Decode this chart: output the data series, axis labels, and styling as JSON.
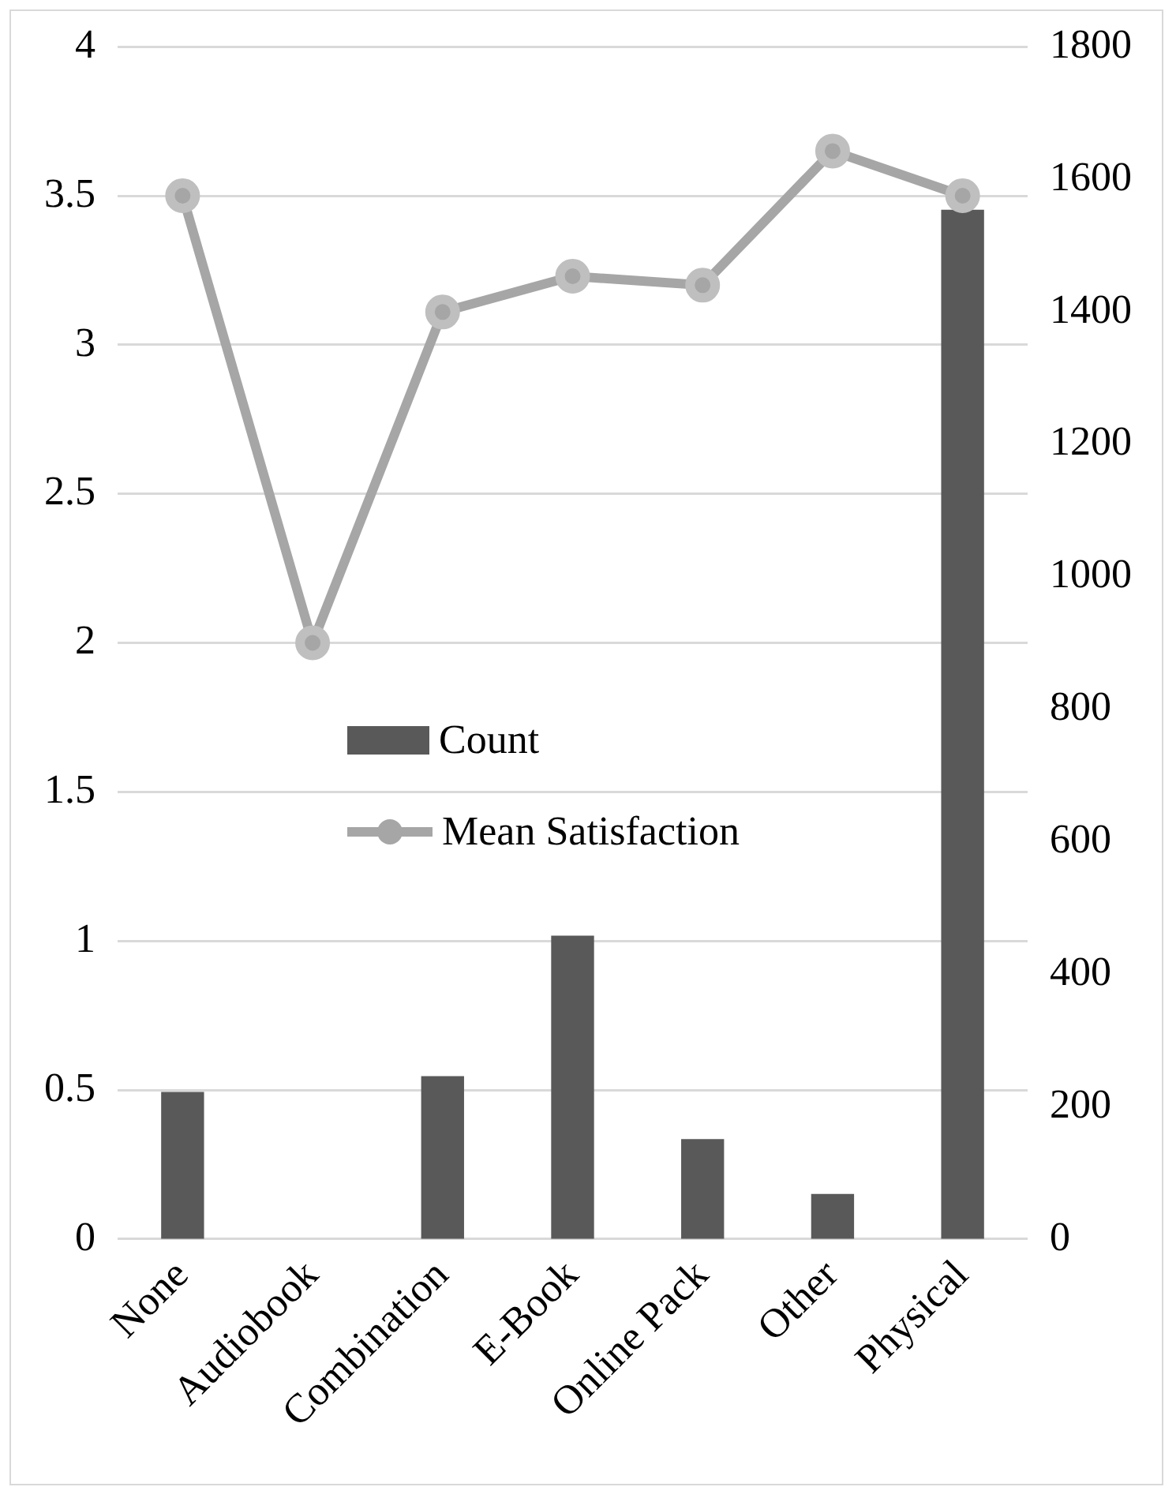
{
  "chart_data": {
    "type": "bar",
    "categories": [
      "None",
      "Audiobook",
      "Combination",
      "E-Book",
      "Online Pack",
      "Other",
      "Physical"
    ],
    "series": [
      {
        "name": "Count",
        "axis": "y2",
        "color": "#595959",
        "values": [
          222,
          0,
          246,
          458,
          151,
          68,
          1554
        ]
      },
      {
        "name": "Mean Satisfaction",
        "type": "line",
        "color": "#a6a6a6",
        "values": [
          3.5,
          2.0,
          3.11,
          3.23,
          3.2,
          3.65,
          3.5
        ]
      }
    ],
    "ylim": [
      0,
      4
    ],
    "yticks": [
      0,
      0.5,
      1,
      1.5,
      2,
      2.5,
      3,
      3.5,
      4
    ],
    "y2lim": [
      0,
      1800
    ],
    "y2ticks": [
      0,
      200,
      400,
      600,
      800,
      1000,
      1200,
      1400,
      1600,
      1800
    ],
    "grid": "y",
    "legend": "center",
    "marker": "circle"
  }
}
